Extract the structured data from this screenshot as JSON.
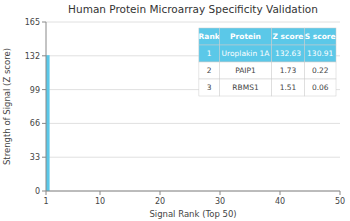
{
  "chart_data": {
    "type": "bar",
    "title": "Human Protein Microarray Specificity Validation",
    "x_label": "Signal Rank (Top 50)",
    "y_label": "Strength of Signal (Z score)",
    "x": [
      1
    ],
    "values": [
      132.63
    ],
    "color": "#5bc8e8",
    "xlim": [
      1,
      50
    ],
    "xticks": [
      1,
      10,
      20,
      30,
      40,
      50
    ],
    "ylim": [
      0,
      165
    ],
    "yticks": [
      0,
      33,
      66,
      99,
      132,
      165
    ],
    "grid": true,
    "table": {
      "headers": [
        "Rank",
        "Protein",
        "Z score",
        "S score"
      ],
      "rows": [
        [
          "1",
          "Uroplakin 1A",
          "132.63",
          "130.91"
        ],
        [
          "2",
          "PAIP1",
          "1.73",
          "0.22"
        ],
        [
          "3",
          "RBMS1",
          "1.51",
          "0.06"
        ]
      ],
      "highlight_row": 0
    }
  }
}
